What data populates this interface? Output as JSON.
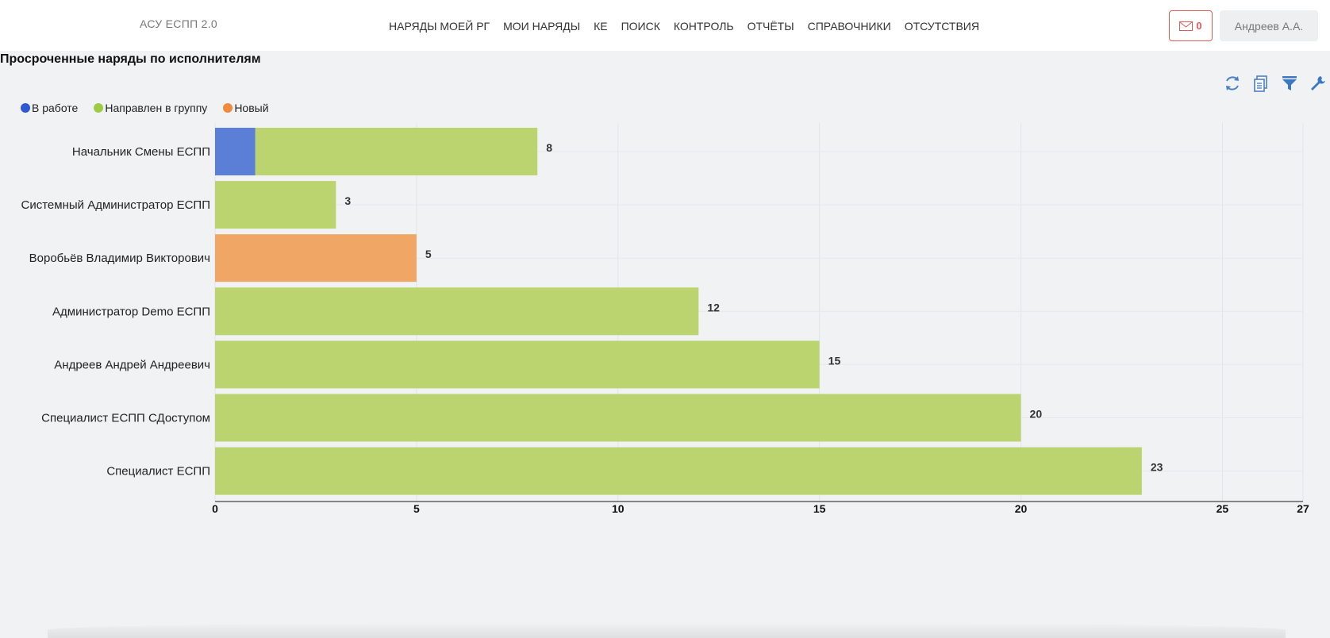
{
  "header": {
    "brand": "АСУ ЕСПП 2.0",
    "nav": [
      "НАРЯДЫ МОЕЙ РГ",
      "МОИ НАРЯДЫ",
      "КЕ",
      "ПОИСК",
      "КОНТРОЛЬ",
      "ОТЧЁТЫ",
      "СПРАВОЧНИКИ",
      "ОТСУТСТВИЯ"
    ],
    "mail_count": "0",
    "user": "Андреев А.А."
  },
  "report": {
    "title": "Просроченные наряды по исполнителям"
  },
  "toolbar": {
    "icons": [
      "refresh-icon",
      "print-icon",
      "filter-icon",
      "wrench-icon"
    ]
  },
  "colors": {
    "in_work": "#5b7fd6",
    "sent_to_group": "#bcd46f",
    "new": "#f0a766",
    "accent": "#e25b5b"
  },
  "chart_data": {
    "type": "bar",
    "orientation": "horizontal",
    "stacked": true,
    "categories": [
      "Начальник Смены ЕСПП",
      "Системный Администратор ЕСПП",
      "Воробьёв Владимир Викторович",
      "Администратор Demo ЕСПП",
      "Андреев Андрей Андреевич",
      "Специалист ЕСПП СДоступом",
      "Специалист ЕСПП"
    ],
    "series": [
      {
        "name": "В работе",
        "color": "#5b7fd6",
        "values": [
          1,
          0,
          0,
          0,
          0,
          0,
          0
        ]
      },
      {
        "name": "Направлен в группу",
        "color": "#bcd46f",
        "values": [
          7,
          3,
          0,
          12,
          15,
          20,
          23
        ]
      },
      {
        "name": "Новый",
        "color": "#f0a766",
        "values": [
          0,
          0,
          5,
          0,
          0,
          0,
          0
        ]
      }
    ],
    "totals": [
      8,
      3,
      5,
      12,
      15,
      20,
      23
    ],
    "xlim": [
      0,
      27
    ],
    "xticks": [
      0,
      5,
      10,
      15,
      20,
      25,
      27
    ],
    "legend_position": "top-left",
    "grid": true
  }
}
